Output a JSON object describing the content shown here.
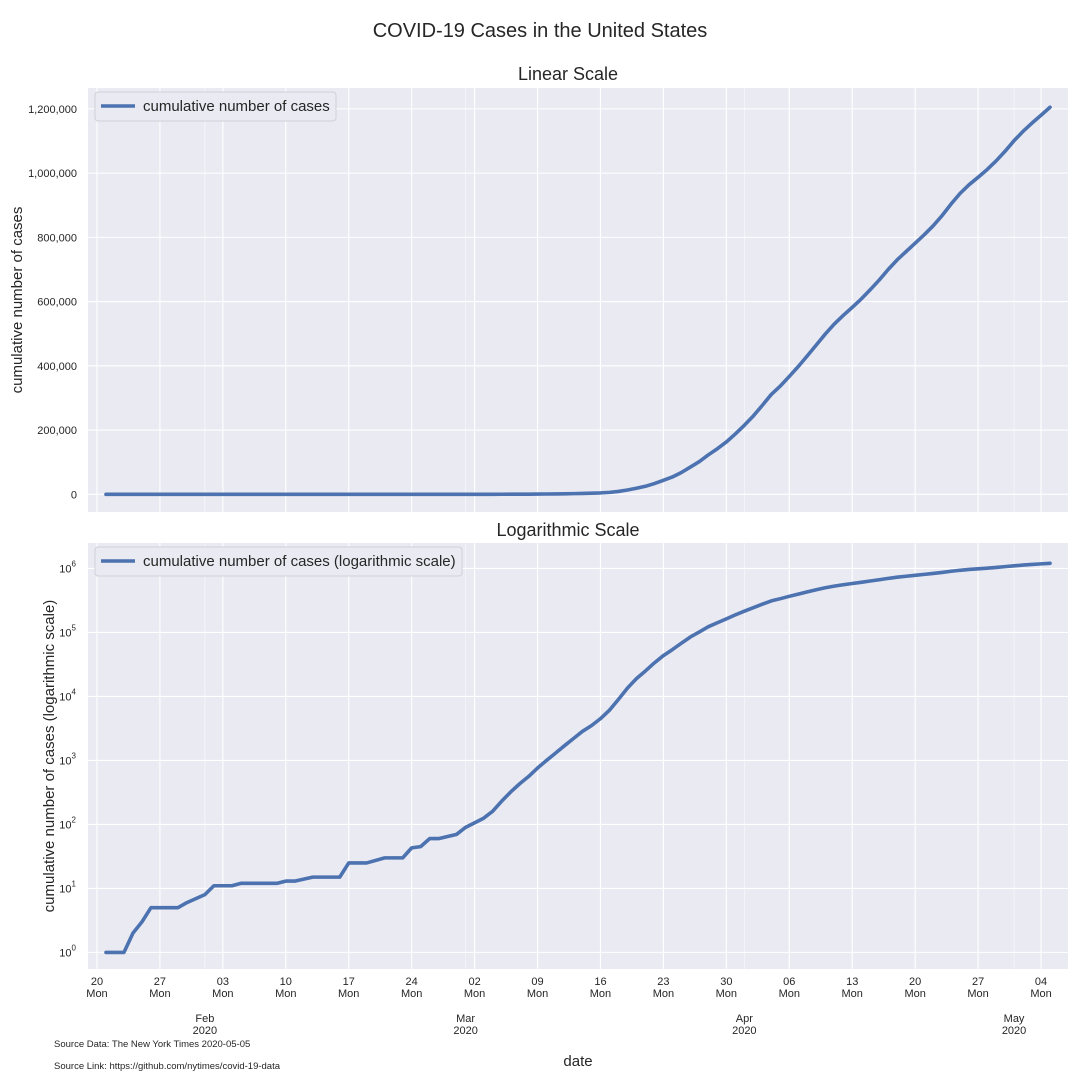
{
  "figure": {
    "title": "COVID-19 Cases in the United States",
    "xlabel": "date",
    "source_data": "Source Data: The New York Times 2020-05-05",
    "source_link": "Source Link: https://github.com/nytimes/covid-19-data"
  },
  "colors": {
    "line": "#4c72b0",
    "panel_bg": "#eaeaf2",
    "grid": "#ffffff"
  },
  "chart_data": [
    {
      "type": "line",
      "title": "Linear Scale",
      "xlabel": "date",
      "ylabel": "cumulative number of cases",
      "legend": "cumulative number of cases",
      "legend_position": "top-left",
      "grid": true,
      "x_range": [
        "2020-01-19",
        "2020-05-07"
      ],
      "ylim": [
        -55000,
        1265000
      ],
      "y_ticks": [
        0,
        200000,
        400000,
        600000,
        800000,
        1000000,
        1200000
      ],
      "y_tick_labels": [
        "0",
        "200,000",
        "400,000",
        "600,000",
        "800,000",
        "1,000,000",
        "1,200,000"
      ],
      "series_ref": "shared"
    },
    {
      "type": "line",
      "title": "Logarithmic Scale",
      "xlabel": "date",
      "ylabel": "cumulative number of cases (logarithmic scale)",
      "legend": "cumulative number of cases (logarithmic scale)",
      "legend_position": "top-left",
      "grid": true,
      "y_scale": "log",
      "x_range": [
        "2020-01-19",
        "2020-05-07"
      ],
      "ylim": [
        0.55,
        2500000
      ],
      "y_ticks": [
        1,
        10,
        100,
        1000,
        10000,
        100000,
        1000000
      ],
      "y_tick_mantissa": [
        "10",
        "10",
        "10",
        "10",
        "10",
        "10",
        "10"
      ],
      "y_tick_exponent": [
        "0",
        "1",
        "2",
        "3",
        "4",
        "5",
        "6"
      ],
      "series_ref": "shared"
    }
  ],
  "series": {
    "name": "cumulative number of cases",
    "points": [
      [
        "2020-01-21",
        1
      ],
      [
        "2020-01-23",
        1
      ],
      [
        "2020-01-24",
        2
      ],
      [
        "2020-01-25",
        3
      ],
      [
        "2020-01-26",
        5
      ],
      [
        "2020-01-29",
        5
      ],
      [
        "2020-01-30",
        6
      ],
      [
        "2020-02-01",
        8
      ],
      [
        "2020-02-02",
        11
      ],
      [
        "2020-02-04",
        11
      ],
      [
        "2020-02-05",
        12
      ],
      [
        "2020-02-09",
        12
      ],
      [
        "2020-02-10",
        13
      ],
      [
        "2020-02-11",
        13
      ],
      [
        "2020-02-13",
        15
      ],
      [
        "2020-02-16",
        15
      ],
      [
        "2020-02-17",
        25
      ],
      [
        "2020-02-19",
        25
      ],
      [
        "2020-02-21",
        30
      ],
      [
        "2020-02-23",
        30
      ],
      [
        "2020-02-24",
        43
      ],
      [
        "2020-02-25",
        45
      ],
      [
        "2020-02-26",
        60
      ],
      [
        "2020-02-27",
        60
      ],
      [
        "2020-02-29",
        70
      ],
      [
        "2020-03-01",
        90
      ],
      [
        "2020-03-03",
        125
      ],
      [
        "2020-03-04",
        160
      ],
      [
        "2020-03-05",
        230
      ],
      [
        "2020-03-06",
        320
      ],
      [
        "2020-03-07",
        430
      ],
      [
        "2020-03-08",
        560
      ],
      [
        "2020-03-09",
        760
      ],
      [
        "2020-03-10",
        1000
      ],
      [
        "2020-03-11",
        1300
      ],
      [
        "2020-03-12",
        1700
      ],
      [
        "2020-03-13",
        2200
      ],
      [
        "2020-03-14",
        2850
      ],
      [
        "2020-03-15",
        3500
      ],
      [
        "2020-03-16",
        4500
      ],
      [
        "2020-03-17",
        6100
      ],
      [
        "2020-03-18",
        9000
      ],
      [
        "2020-03-19",
        13500
      ],
      [
        "2020-03-20",
        19000
      ],
      [
        "2020-03-21",
        25000
      ],
      [
        "2020-03-22",
        33500
      ],
      [
        "2020-03-23",
        43500
      ],
      [
        "2020-03-24",
        54000
      ],
      [
        "2020-03-25",
        68000
      ],
      [
        "2020-03-26",
        85000
      ],
      [
        "2020-03-27",
        102000
      ],
      [
        "2020-03-28",
        123000
      ],
      [
        "2020-03-29",
        142000
      ],
      [
        "2020-03-30",
        163000
      ],
      [
        "2020-03-31",
        188000
      ],
      [
        "2020-04-01",
        215000
      ],
      [
        "2020-04-02",
        244000
      ],
      [
        "2020-04-03",
        277000
      ],
      [
        "2020-04-04",
        311000
      ],
      [
        "2020-04-05",
        337000
      ],
      [
        "2020-04-06",
        367000
      ],
      [
        "2020-04-07",
        398000
      ],
      [
        "2020-04-08",
        431000
      ],
      [
        "2020-04-09",
        465000
      ],
      [
        "2020-04-10",
        499000
      ],
      [
        "2020-04-11",
        530000
      ],
      [
        "2020-04-12",
        557000
      ],
      [
        "2020-04-13",
        582000
      ],
      [
        "2020-04-14",
        608000
      ],
      [
        "2020-04-15",
        637000
      ],
      [
        "2020-04-16",
        667000
      ],
      [
        "2020-04-17",
        700000
      ],
      [
        "2020-04-18",
        730000
      ],
      [
        "2020-04-19",
        756000
      ],
      [
        "2020-04-20",
        782000
      ],
      [
        "2020-04-21",
        808000
      ],
      [
        "2020-04-22",
        836000
      ],
      [
        "2020-04-23",
        868000
      ],
      [
        "2020-04-24",
        904000
      ],
      [
        "2020-04-25",
        937000
      ],
      [
        "2020-04-26",
        964000
      ],
      [
        "2020-04-27",
        987000
      ],
      [
        "2020-04-28",
        1011000
      ],
      [
        "2020-04-29",
        1038000
      ],
      [
        "2020-04-30",
        1068000
      ],
      [
        "2020-05-01",
        1101000
      ],
      [
        "2020-05-02",
        1130000
      ],
      [
        "2020-05-03",
        1156000
      ],
      [
        "2020-05-04",
        1180000
      ],
      [
        "2020-05-05",
        1205000
      ]
    ]
  },
  "x_ticks": [
    {
      "date": "2020-01-20",
      "day": "20",
      "weekday": "Mon"
    },
    {
      "date": "2020-01-27",
      "day": "27",
      "weekday": "Mon"
    },
    {
      "date": "2020-02-03",
      "day": "03",
      "weekday": "Mon"
    },
    {
      "date": "2020-02-10",
      "day": "10",
      "weekday": "Mon"
    },
    {
      "date": "2020-02-17",
      "day": "17",
      "weekday": "Mon"
    },
    {
      "date": "2020-02-24",
      "day": "24",
      "weekday": "Mon"
    },
    {
      "date": "2020-03-02",
      "day": "02",
      "weekday": "Mon"
    },
    {
      "date": "2020-03-09",
      "day": "09",
      "weekday": "Mon"
    },
    {
      "date": "2020-03-16",
      "day": "16",
      "weekday": "Mon"
    },
    {
      "date": "2020-03-23",
      "day": "23",
      "weekday": "Mon"
    },
    {
      "date": "2020-03-30",
      "day": "30",
      "weekday": "Mon"
    },
    {
      "date": "2020-04-06",
      "day": "06",
      "weekday": "Mon"
    },
    {
      "date": "2020-04-13",
      "day": "13",
      "weekday": "Mon"
    },
    {
      "date": "2020-04-20",
      "day": "20",
      "weekday": "Mon"
    },
    {
      "date": "2020-04-27",
      "day": "27",
      "weekday": "Mon"
    },
    {
      "date": "2020-05-04",
      "day": "04",
      "weekday": "Mon"
    }
  ],
  "month_ticks": [
    {
      "date": "2020-02-01",
      "month": "Feb",
      "year": "2020"
    },
    {
      "date": "2020-03-01",
      "month": "Mar",
      "year": "2020"
    },
    {
      "date": "2020-04-01",
      "month": "Apr",
      "year": "2020"
    },
    {
      "date": "2020-05-01",
      "month": "May",
      "year": "2020"
    }
  ]
}
